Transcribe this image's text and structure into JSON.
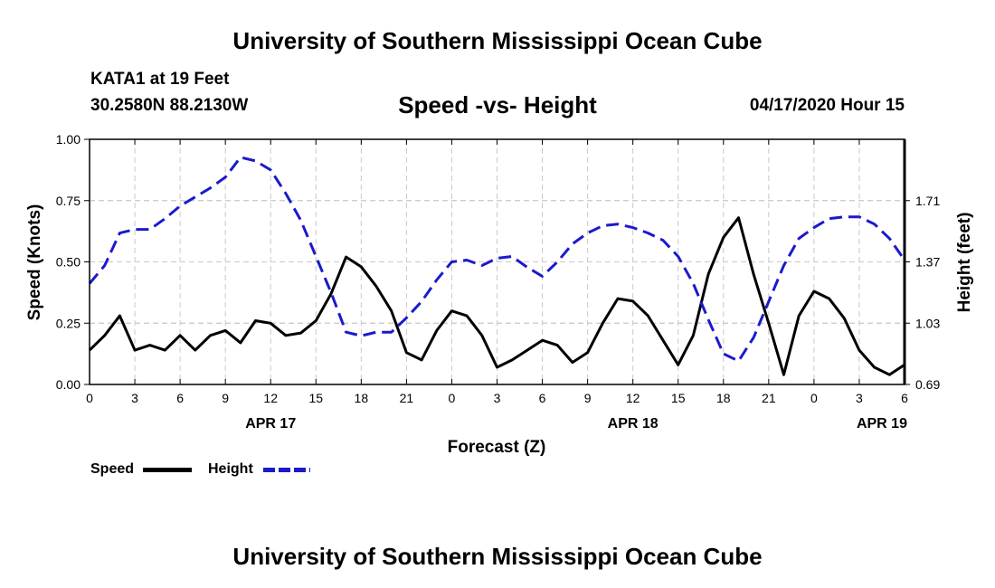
{
  "header": {
    "title": "University of Southern Mississippi Ocean Cube",
    "station": "KATA1 at 19 Feet",
    "location": "30.2580N 88.2130W",
    "plot_title": "Speed -vs- Height",
    "timestamp": "04/17/2020 Hour 15"
  },
  "footer": {
    "title": "University of Southern Mississippi Ocean Cube"
  },
  "legend": {
    "speed_label": "Speed",
    "height_label": "Height"
  },
  "colors": {
    "speed": "#000000",
    "height": "#1a1acc",
    "grid": "#c8c8c8"
  },
  "chart_data": {
    "type": "line",
    "title": "Speed -vs- Height",
    "xlabel": "Forecast (Z)",
    "ylabel": "Speed (Knots)",
    "y2label": "Height (feet)",
    "xlim": [
      0,
      54
    ],
    "ylim": [
      0,
      1.0
    ],
    "y2lim": [
      0.69,
      2.05
    ],
    "x_ticks": [
      0,
      3,
      6,
      9,
      12,
      15,
      18,
      21,
      24,
      27,
      30,
      33,
      36,
      39,
      42,
      45,
      48,
      51,
      54
    ],
    "x_tick_labels": [
      "0",
      "3",
      "6",
      "9",
      "12",
      "15",
      "18",
      "21",
      "0",
      "3",
      "6",
      "9",
      "12",
      "15",
      "18",
      "21",
      "0",
      "3",
      "6"
    ],
    "y_ticks": [
      0,
      0.25,
      0.5,
      0.75,
      1.0
    ],
    "y_tick_labels": [
      "0.00",
      "0.25",
      "0.50",
      "0.75",
      "1.00"
    ],
    "y2_ticks": [
      0.69,
      1.03,
      1.37,
      1.71
    ],
    "y2_tick_labels": [
      "0.69",
      "1.03",
      "1.37",
      "1.71"
    ],
    "date_labels": [
      {
        "x": 12,
        "label": "APR 17"
      },
      {
        "x": 36,
        "label": "APR 18"
      },
      {
        "x": 52.5,
        "label": "APR 19"
      }
    ],
    "series": [
      {
        "name": "Speed",
        "axis": "left",
        "style": "solid",
        "x": [
          0,
          1,
          2,
          3,
          4,
          5,
          6,
          7,
          8,
          9,
          10,
          11,
          12,
          13,
          14,
          15,
          16,
          17,
          18,
          19,
          20,
          21,
          22,
          23,
          24,
          25,
          26,
          27,
          28,
          29,
          30,
          31,
          32,
          33,
          34,
          35,
          36,
          37,
          38,
          39,
          40,
          41,
          42,
          43,
          44,
          45,
          46,
          47,
          48,
          49,
          50,
          51,
          52,
          53,
          54
        ],
        "values": [
          0.14,
          0.2,
          0.28,
          0.14,
          0.16,
          0.14,
          0.2,
          0.14,
          0.2,
          0.22,
          0.17,
          0.26,
          0.25,
          0.2,
          0.21,
          0.26,
          0.37,
          0.52,
          0.48,
          0.4,
          0.3,
          0.13,
          0.1,
          0.22,
          0.3,
          0.28,
          0.2,
          0.07,
          0.1,
          0.14,
          0.18,
          0.16,
          0.09,
          0.13,
          0.25,
          0.35,
          0.34,
          0.28,
          0.18,
          0.08,
          0.2,
          0.45,
          0.6,
          0.68,
          0.45,
          0.25,
          0.04,
          0.28,
          0.38,
          0.35,
          0.27,
          0.14,
          0.07,
          0.04,
          0.08
        ]
      },
      {
        "name": "Height",
        "axis": "right",
        "style": "dashed",
        "x": [
          0,
          1,
          2,
          3,
          4,
          5,
          6,
          7,
          8,
          9,
          10,
          11,
          12,
          13,
          14,
          15,
          16,
          17,
          18,
          19,
          20,
          21,
          22,
          23,
          24,
          25,
          26,
          27,
          28,
          29,
          30,
          31,
          32,
          33,
          34,
          35,
          36,
          37,
          38,
          39,
          40,
          41,
          42,
          43,
          44,
          45,
          46,
          47,
          48,
          49,
          50,
          51,
          52,
          53,
          54
        ],
        "values": [
          1.25,
          1.35,
          1.53,
          1.55,
          1.55,
          1.61,
          1.68,
          1.73,
          1.78,
          1.84,
          1.95,
          1.93,
          1.88,
          1.75,
          1.6,
          1.4,
          1.2,
          0.98,
          0.96,
          0.98,
          0.98,
          1.06,
          1.15,
          1.27,
          1.37,
          1.38,
          1.35,
          1.39,
          1.4,
          1.34,
          1.29,
          1.37,
          1.47,
          1.53,
          1.57,
          1.58,
          1.56,
          1.53,
          1.49,
          1.4,
          1.25,
          1.05,
          0.86,
          0.82,
          0.95,
          1.15,
          1.35,
          1.5,
          1.56,
          1.61,
          1.62,
          1.62,
          1.58,
          1.5,
          1.38
        ]
      }
    ]
  }
}
